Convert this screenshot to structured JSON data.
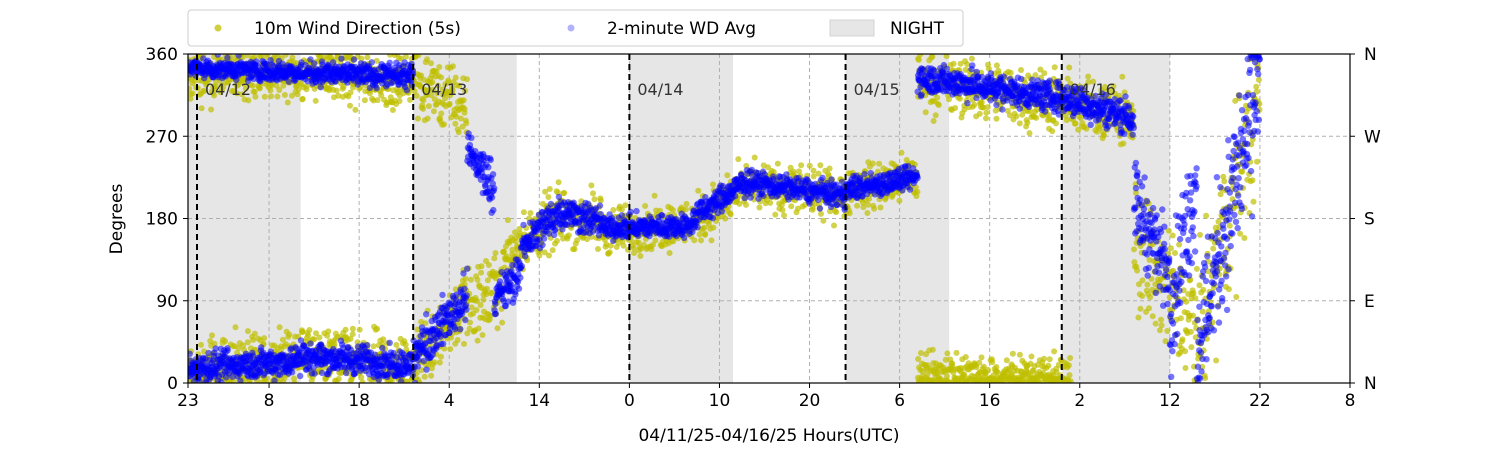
{
  "chart_data": {
    "type": "scatter",
    "xlabel": "04/11/25-04/16/25  Hours(UTC)",
    "ylabel": "Degrees",
    "ylim": [
      0,
      360
    ],
    "xlim": [
      0,
      129
    ],
    "x_ticks": [
      {
        "at": 0,
        "label": "23"
      },
      {
        "at": 9,
        "label": "8"
      },
      {
        "at": 19,
        "label": "18"
      },
      {
        "at": 29,
        "label": "4"
      },
      {
        "at": 39,
        "label": "14"
      },
      {
        "at": 49,
        "label": "0"
      },
      {
        "at": 59,
        "label": "10"
      },
      {
        "at": 69,
        "label": "20"
      },
      {
        "at": 79,
        "label": "6"
      },
      {
        "at": 89,
        "label": "16"
      },
      {
        "at": 99,
        "label": "2"
      },
      {
        "at": 109,
        "label": "12"
      },
      {
        "at": 119,
        "label": "22"
      },
      {
        "at": 129,
        "label": "8"
      }
    ],
    "y_ticks": [
      0,
      90,
      180,
      270,
      360
    ],
    "y2_ticks": [
      {
        "at": 0,
        "label": "N"
      },
      {
        "at": 90,
        "label": "E"
      },
      {
        "at": 180,
        "label": "S"
      },
      {
        "at": 270,
        "label": "W"
      },
      {
        "at": 360,
        "label": "N"
      }
    ],
    "grid": true,
    "legend_position": "top-left (above plot)",
    "legend": [
      {
        "label": "10m Wind Direction (5s)",
        "kind": "dot",
        "color": "#bfbf00"
      },
      {
        "label": "2-minute WD Avg",
        "kind": "dot",
        "color": "#0000ff"
      },
      {
        "label": "NIGHT",
        "kind": "patch",
        "color": "#e6e6e6"
      }
    ],
    "day_dividers": [
      {
        "x": 1,
        "label": "04/12"
      },
      {
        "x": 25,
        "label": "04/13"
      },
      {
        "x": 49,
        "label": "04/14"
      },
      {
        "x": 73,
        "label": "04/15"
      },
      {
        "x": 97,
        "label": "04/16"
      }
    ],
    "night_bands": [
      [
        0,
        12.5
      ],
      [
        25,
        36.5
      ],
      [
        49,
        60.5
      ],
      [
        73,
        84.5
      ],
      [
        97,
        109
      ]
    ],
    "colors": {
      "raw": "#bfbf00",
      "avg": "#0000ff",
      "night": "#e6e6e6",
      "divider": "#000000",
      "grid": "#b0b0b0"
    },
    "series": [
      {
        "name": "10m Wind Direction (5s)",
        "segments": [
          {
            "x0": 0,
            "x1": 12.5,
            "y0": 12,
            "y1": 28,
            "spread": 35
          },
          {
            "x0": 0,
            "x1": 12.5,
            "y0": 335,
            "y1": 340,
            "spread": 30
          },
          {
            "x0": 12.5,
            "x1": 25,
            "y0": 30,
            "y1": 20,
            "spread": 35
          },
          {
            "x0": 12.5,
            "x1": 25,
            "y0": 340,
            "y1": 330,
            "spread": 30
          },
          {
            "x0": 25,
            "x1": 31,
            "y0": 25,
            "y1": 90,
            "spread": 45
          },
          {
            "x0": 25,
            "x1": 31,
            "y0": 330,
            "y1": 300,
            "spread": 40
          },
          {
            "x0": 31,
            "x1": 35,
            "y0": 80,
            "y1": 110,
            "spread": 45
          },
          {
            "x0": 35,
            "x1": 41,
            "y0": 140,
            "y1": 180,
            "spread": 35
          },
          {
            "x0": 41,
            "x1": 46,
            "y0": 185,
            "y1": 175,
            "spread": 35
          },
          {
            "x0": 46,
            "x1": 56,
            "y0": 165,
            "y1": 175,
            "spread": 28
          },
          {
            "x0": 56,
            "x1": 62,
            "y0": 175,
            "y1": 215,
            "spread": 30
          },
          {
            "x0": 62,
            "x1": 73,
            "y0": 215,
            "y1": 205,
            "spread": 28
          },
          {
            "x0": 73,
            "x1": 81,
            "y0": 210,
            "y1": 225,
            "spread": 28
          },
          {
            "x0": 81,
            "x1": 98,
            "y0": 330,
            "y1": 305,
            "spread": 35
          },
          {
            "x0": 81,
            "x1": 98,
            "y0": 10,
            "y1": 5,
            "spread": 25
          },
          {
            "x0": 98,
            "x1": 105,
            "y0": 305,
            "y1": 290,
            "spread": 35
          },
          {
            "x0": 105,
            "x1": 112,
            "y0": 150,
            "y1": 60,
            "spread": 80
          },
          {
            "x0": 112,
            "x1": 119,
            "y0": 40,
            "y1": 320,
            "spread": 100
          }
        ]
      },
      {
        "name": "2-minute WD Avg",
        "segments": [
          {
            "x0": 0,
            "x1": 12.5,
            "y0": 15,
            "y1": 25,
            "spread": 18
          },
          {
            "x0": 0,
            "x1": 12.5,
            "y0": 345,
            "y1": 340,
            "spread": 12
          },
          {
            "x0": 12.5,
            "x1": 25,
            "y0": 30,
            "y1": 20,
            "spread": 18
          },
          {
            "x0": 12.5,
            "x1": 25,
            "y0": 340,
            "y1": 335,
            "spread": 14
          },
          {
            "x0": 25,
            "x1": 31,
            "y0": 30,
            "y1": 95,
            "spread": 28
          },
          {
            "x0": 31,
            "x1": 34,
            "y0": 255,
            "y1": 215,
            "spread": 28
          },
          {
            "x0": 34,
            "x1": 37,
            "y0": 90,
            "y1": 120,
            "spread": 25
          },
          {
            "x0": 37,
            "x1": 41,
            "y0": 150,
            "y1": 185,
            "spread": 25
          },
          {
            "x0": 41,
            "x1": 46,
            "y0": 190,
            "y1": 175,
            "spread": 20
          },
          {
            "x0": 46,
            "x1": 56,
            "y0": 170,
            "y1": 172,
            "spread": 14
          },
          {
            "x0": 56,
            "x1": 62,
            "y0": 180,
            "y1": 220,
            "spread": 16
          },
          {
            "x0": 62,
            "x1": 73,
            "y0": 220,
            "y1": 205,
            "spread": 14
          },
          {
            "x0": 73,
            "x1": 81,
            "y0": 212,
            "y1": 225,
            "spread": 14
          },
          {
            "x0": 81,
            "x1": 98,
            "y0": 335,
            "y1": 310,
            "spread": 18
          },
          {
            "x0": 98,
            "x1": 105,
            "y0": 310,
            "y1": 290,
            "spread": 20
          },
          {
            "x0": 105,
            "x1": 109,
            "y0": 200,
            "y1": 120,
            "spread": 50
          },
          {
            "x0": 109,
            "x1": 112,
            "y0": 80,
            "y1": 220,
            "spread": 70
          },
          {
            "x0": 112,
            "x1": 119,
            "y0": 40,
            "y1": 330,
            "spread": 90
          }
        ]
      }
    ]
  }
}
